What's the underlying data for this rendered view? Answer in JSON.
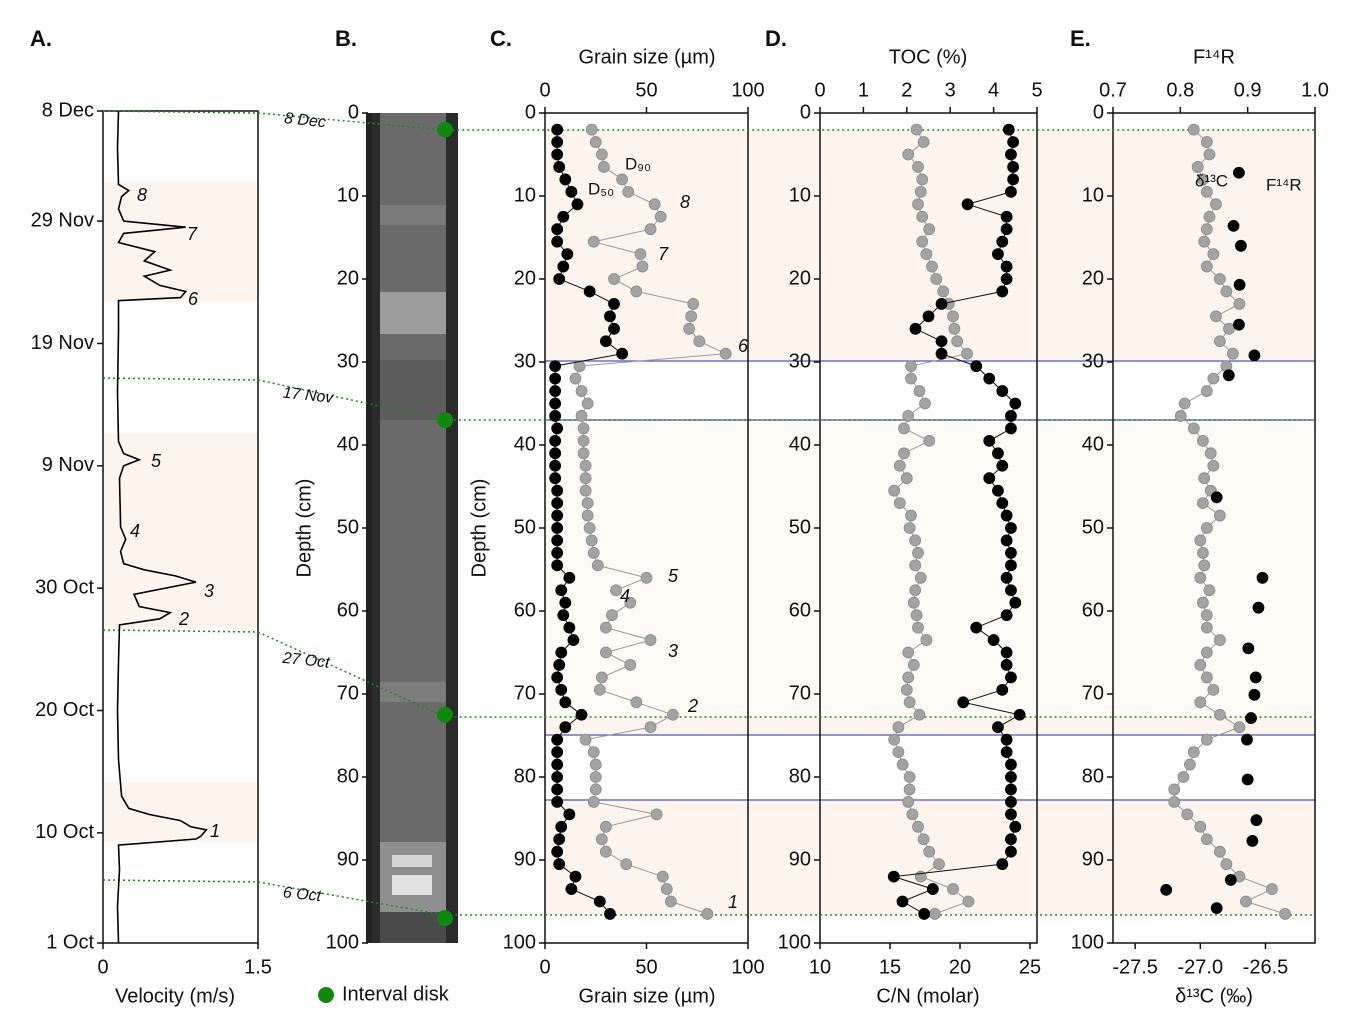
{
  "chart_data": [
    {
      "type": "line",
      "panel_label": "A.",
      "xlabel": "Velocity (m/s)",
      "color": "#000000",
      "xlim": [
        0,
        1.5
      ],
      "xticks": [
        0,
        1.5
      ],
      "ylim": [
        "10-01",
        "12-08"
      ],
      "yticks": [
        {
          "value": "12-08",
          "label": "8 Dec"
        },
        {
          "value": "11-29",
          "label": "29 Nov"
        },
        {
          "value": "11-19",
          "label": "19 Nov"
        },
        {
          "value": "11-09",
          "label": "9 Nov"
        },
        {
          "value": "10-30",
          "label": "30 Oct"
        },
        {
          "value": "10-20",
          "label": "20 Oct"
        },
        {
          "value": "10-10",
          "label": "10 Oct"
        },
        {
          "value": "10-01",
          "label": "1 Oct"
        }
      ],
      "dates": [
        "10-01",
        "10-04",
        "10-07",
        "10-09",
        "10-09 12:00",
        "10-09 18:00",
        "10-10 06:00",
        "10-10 12:00",
        "10-11",
        "10-11 12:00",
        "10-12",
        "10-13",
        "10-16",
        "10-20",
        "10-24",
        "10-27",
        "10-27 12:00",
        "10-28",
        "10-28 12:00",
        "10-29 12:00",
        "10-30 12:00",
        "10-31",
        "10-31 12:00",
        "11-01",
        "11-02",
        "11-03",
        "11-04",
        "11-08",
        "11-09",
        "11-09 12:00",
        "11-10",
        "11-11",
        "11-15",
        "11-20",
        "11-22 12:00",
        "11-22 18:00",
        "11-23 06:00",
        "11-23 18:00",
        "11-24 12:00",
        "11-25",
        "11-25 18:00",
        "11-26 12:00",
        "11-27 06:00",
        "11-28",
        "11-28 12:00",
        "11-29",
        "11-30",
        "12-01",
        "12-01 12:00",
        "12-02",
        "12-05",
        "12-08"
      ],
      "values": [
        0.15,
        0.14,
        0.16,
        0.15,
        0.9,
        0.95,
        1.0,
        0.85,
        0.75,
        0.45,
        0.25,
        0.18,
        0.15,
        0.14,
        0.15,
        0.16,
        0.55,
        0.65,
        0.35,
        0.3,
        0.9,
        0.7,
        0.4,
        0.2,
        0.17,
        0.22,
        0.17,
        0.16,
        0.2,
        0.35,
        0.2,
        0.15,
        0.14,
        0.15,
        0.15,
        0.75,
        0.8,
        0.55,
        0.4,
        0.65,
        0.4,
        0.5,
        0.15,
        0.2,
        0.8,
        0.2,
        0.15,
        0.18,
        0.25,
        0.15,
        0.14,
        0.15
      ],
      "event_labels": [
        "1",
        "2",
        "3",
        "4",
        "5",
        "6",
        "7",
        "8"
      ],
      "event_color": "#e8141b"
    },
    {
      "type": "core-image",
      "panel_label": "B.",
      "ylabel": "Depth (cm)",
      "ylim": [
        0,
        100
      ],
      "yticks": [
        0,
        10,
        20,
        30,
        40,
        50,
        60,
        70,
        80,
        90,
        100
      ],
      "interval_disk": {
        "name": "Interval disk",
        "color": "#0b8a0b",
        "depths": [
          2,
          37,
          72.5,
          97
        ],
        "labels": [
          "8 Dec",
          "17 Nov",
          "27 Oct",
          "6 Oct"
        ]
      }
    },
    {
      "type": "profile",
      "panel_label": "C.",
      "ylabel": "Depth (cm)",
      "ylim": [
        0,
        100
      ],
      "yticks": [
        0,
        10,
        20,
        30,
        40,
        50,
        60,
        70,
        80,
        90,
        100
      ],
      "xlabel": "Grain size (µm)",
      "xlim": [
        0,
        100
      ],
      "xticks": [
        0,
        50,
        100
      ],
      "x2label": "Grain size (µm)",
      "x2lim": [
        0,
        100
      ],
      "x2ticks": [
        0,
        50,
        100
      ],
      "depth": [
        2,
        3.5,
        5,
        6.5,
        8,
        9.5,
        11,
        12.5,
        14,
        15.5,
        17,
        18.5,
        20,
        21.5,
        23,
        24.5,
        26,
        27.5,
        29,
        30.5,
        32,
        33.5,
        35,
        36.5,
        38,
        39.5,
        41,
        42.5,
        44,
        45.5,
        47,
        48.5,
        50,
        51.5,
        53,
        54.5,
        56,
        57.5,
        59,
        60.5,
        62,
        63.5,
        65,
        66.5,
        68,
        69.5,
        71,
        72.5,
        74,
        75.5,
        77,
        78.5,
        80,
        81.5,
        83,
        84.5,
        86,
        87.5,
        89,
        90.5,
        92,
        93.5,
        95,
        96.5
      ],
      "series": [
        {
          "name": "D₉₀",
          "color": "#a3a3a3",
          "values": [
            23,
            25,
            28,
            29,
            38,
            41,
            54,
            57,
            52,
            24,
            47,
            48,
            34,
            45,
            73,
            72,
            71,
            76,
            89,
            17,
            15,
            18,
            21,
            18,
            19,
            19,
            19,
            20,
            20,
            20,
            21,
            21,
            22,
            23,
            24,
            26,
            50,
            35,
            42,
            33,
            30,
            52,
            30,
            42,
            28,
            27,
            45,
            63,
            52,
            20,
            24,
            25,
            25,
            25,
            24,
            55,
            30,
            28,
            30,
            40,
            58,
            60,
            62,
            80
          ]
        },
        {
          "name": "D₅₀",
          "color": "#000000",
          "values": [
            6,
            6,
            6,
            7,
            10,
            13,
            16,
            9,
            6,
            6,
            11,
            9,
            7,
            22,
            34,
            32,
            34,
            30,
            38,
            5,
            5,
            5,
            5,
            5,
            6,
            5,
            5,
            5,
            5,
            6,
            6,
            6,
            6,
            6,
            6,
            6,
            12,
            8,
            10,
            9,
            12,
            14,
            8,
            7,
            6,
            8,
            10,
            18,
            10,
            6,
            6,
            6,
            6,
            6,
            6,
            12,
            8,
            7,
            6,
            7,
            15,
            13,
            27,
            32
          ]
        }
      ],
      "event_labels": [
        "1",
        "2",
        "3",
        "4",
        "5",
        "6",
        "7",
        "8"
      ],
      "event_color": "#e8141b"
    },
    {
      "type": "profile",
      "panel_label": "D.",
      "ylim": [
        0,
        100
      ],
      "yticks": [
        0,
        10,
        20,
        30,
        40,
        50,
        60,
        70,
        80,
        90,
        100
      ],
      "xlabel": "C/N (molar)",
      "xlim": [
        10,
        25.5
      ],
      "xticks": [
        10,
        15,
        20,
        25
      ],
      "x2label": "TOC (%)",
      "x2lim": [
        0,
        5
      ],
      "x2ticks": [
        0,
        1,
        2,
        3,
        4,
        5
      ],
      "depth": [
        2,
        3.5,
        5,
        6.5,
        8,
        9.5,
        11,
        12.5,
        14,
        15.5,
        17,
        18.5,
        20,
        21.5,
        23,
        24.5,
        26,
        27.5,
        29,
        30.5,
        32,
        33.5,
        35,
        36.5,
        38,
        39.5,
        41,
        42.5,
        44,
        45.5,
        47,
        48.5,
        50,
        51.5,
        53,
        54.5,
        56,
        57.5,
        59,
        60.5,
        62,
        63.5,
        65,
        66.5,
        68,
        69.5,
        71,
        72.5,
        74,
        75.5,
        77,
        78.5,
        80,
        81.5,
        83,
        84.5,
        86,
        87.5,
        89,
        90.5,
        92,
        93.5,
        95,
        96.5
      ],
      "series": [
        {
          "color": "#a3a3a3",
          "values": [
            16.9,
            17.4,
            16.3,
            17,
            17.3,
            17.2,
            17,
            17.3,
            17.8,
            17.3,
            17.6,
            18,
            18.3,
            18.8,
            19.2,
            19.5,
            19.6,
            19.8,
            20.5,
            16.5,
            16.5,
            17.1,
            17.5,
            16.3,
            16,
            17.8,
            16,
            15.7,
            16.2,
            15.3,
            15.7,
            16.5,
            16.4,
            16.8,
            17,
            16.8,
            17.2,
            16.8,
            16.7,
            16.9,
            17,
            17.6,
            16.3,
            16.7,
            16.3,
            16.2,
            16.4,
            17.1,
            15.6,
            15.3,
            15.6,
            15.9,
            16.4,
            16.4,
            16.3,
            16.6,
            17,
            17.4,
            17.8,
            18.5,
            17.2,
            19.5,
            20.6,
            18.2
          ]
        },
        {
          "color": "#000000",
          "axis": "x2",
          "values": [
            4.35,
            4.45,
            4.4,
            4.45,
            4.45,
            4.4,
            3.4,
            4.3,
            4.3,
            4.2,
            4.1,
            4.3,
            4.3,
            4.2,
            2.8,
            2.5,
            2.2,
            2.8,
            2.8,
            3.6,
            3.9,
            4.2,
            4.5,
            4.4,
            4.4,
            3.9,
            4.1,
            4.2,
            3.9,
            4.1,
            4.2,
            4.3,
            4.4,
            4.3,
            4.4,
            4.4,
            4.3,
            4.4,
            4.5,
            4.3,
            3.6,
            4,
            4.3,
            4.3,
            4.4,
            4.2,
            3.3,
            4.6,
            4.1,
            4.3,
            4.3,
            4.4,
            4.4,
            4.4,
            4.4,
            4.4,
            4.5,
            4.4,
            4.4,
            4.2,
            1.7,
            2.6,
            1.9,
            2.4
          ]
        }
      ]
    },
    {
      "type": "profile",
      "panel_label": "E.",
      "ylim": [
        0,
        100
      ],
      "yticks": [
        0,
        10,
        20,
        30,
        40,
        50,
        60,
        70,
        80,
        90,
        100
      ],
      "xlabel": "δ¹³C (‰)",
      "xlim": [
        -27.67,
        -26.12
      ],
      "xticks": [
        -27.5,
        {
          "value": -27,
          "label": "-27.0"
        },
        -26.5
      ],
      "x2label": "F¹⁴R",
      "x2lim": [
        0.7,
        1
      ],
      "x2ticks": [
        0.7,
        0.8,
        0.9,
        {
          "value": 1,
          "label": "1.0"
        }
      ],
      "depth": [
        2,
        3.5,
        5,
        6.5,
        8,
        9.5,
        11,
        12.5,
        14,
        15.5,
        17,
        18.5,
        20,
        21.5,
        23,
        24.5,
        26,
        27.5,
        29,
        30.5,
        32,
        33.5,
        35,
        36.5,
        38,
        39.5,
        41,
        42.5,
        44,
        45.5,
        47,
        48.5,
        50,
        51.5,
        53,
        54.5,
        56,
        57.5,
        59,
        60.5,
        62,
        63.5,
        65,
        66.5,
        68,
        69.5,
        71,
        72.5,
        74,
        75.5,
        77,
        78.5,
        80,
        81.5,
        83,
        84.5,
        86,
        87.5,
        89,
        90.5,
        92,
        93.5,
        95,
        96.5
      ],
      "series": [
        {
          "name": "δ¹³C",
          "color": "#a3a3a3",
          "values": [
            -27.05,
            -26.95,
            -26.93,
            -27.02,
            -26.98,
            -26.95,
            -26.88,
            -26.93,
            -26.95,
            -26.97,
            -26.9,
            -26.95,
            -26.85,
            -26.8,
            -26.7,
            -26.88,
            -26.78,
            -26.85,
            -26.75,
            -26.8,
            -26.9,
            -26.95,
            -27.12,
            -27.15,
            -27.05,
            -26.98,
            -26.92,
            -26.9,
            -26.97,
            -26.92,
            -26.98,
            -26.85,
            -26.95,
            -27,
            -26.98,
            -26.97,
            -27,
            -26.93,
            -26.98,
            -26.95,
            -26.95,
            -26.85,
            -26.95,
            -27,
            -26.95,
            -26.9,
            -27,
            -26.85,
            -26.7,
            -26.95,
            -27.05,
            -27.08,
            -27.13,
            -27.2,
            -27.2,
            -27.1,
            -27,
            -26.95,
            -26.85,
            -26.8,
            -26.7,
            -26.45,
            -26.65,
            -26.35
          ]
        },
        {
          "name": "F¹⁴R",
          "color": "#000000",
          "axis": "x2",
          "connect": false,
          "depth": [
            7.2,
            13.6,
            16,
            20.7,
            25.5,
            29.2,
            31.6,
            46.3,
            56,
            59.6,
            64.5,
            68,
            70.1,
            72.9,
            75.5,
            80.3,
            85.2,
            87.7,
            92.4,
            93.6,
            95.8
          ],
          "values": [
            0.887,
            0.879,
            0.89,
            0.888,
            0.887,
            0.91,
            0.872,
            0.854,
            0.922,
            0.916,
            0.901,
            0.912,
            0.91,
            0.905,
            0.899,
            0.9,
            0.913,
            0.907,
            0.875,
            0.779,
            0.854
          ]
        }
      ]
    }
  ]
}
